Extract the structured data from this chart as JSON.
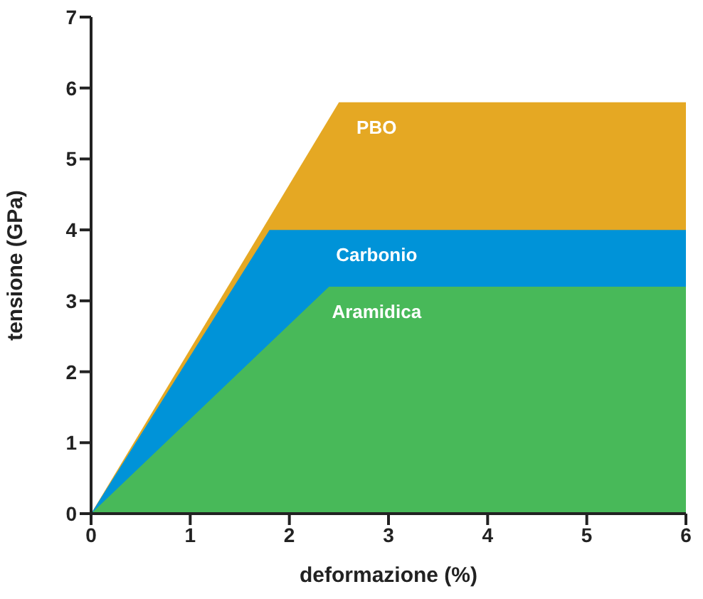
{
  "chart_data": {
    "type": "area",
    "xlabel": "deformazione (%)",
    "ylabel": "tensione (GPa)",
    "xlim": [
      0,
      6
    ],
    "xticks": [
      0,
      1,
      2,
      3,
      4,
      5,
      6
    ],
    "ylim": [
      0,
      7
    ],
    "yticks": [
      0,
      1,
      2,
      3,
      4,
      5,
      6,
      7
    ],
    "grid": false,
    "legend": false,
    "series": [
      {
        "name": "PBO",
        "color": "#e5a823",
        "x": [
          0,
          2.5,
          6
        ],
        "values": [
          0,
          5.8,
          5.8
        ]
      },
      {
        "name": "Carbonio",
        "color": "#0093d8",
        "x": [
          0,
          1.8,
          6
        ],
        "values": [
          0,
          4.0,
          4.0
        ]
      },
      {
        "name": "Aramidica",
        "color": "#48b959",
        "x": [
          0,
          2.4,
          6
        ],
        "values": [
          0,
          3.2,
          3.2
        ]
      }
    ]
  }
}
